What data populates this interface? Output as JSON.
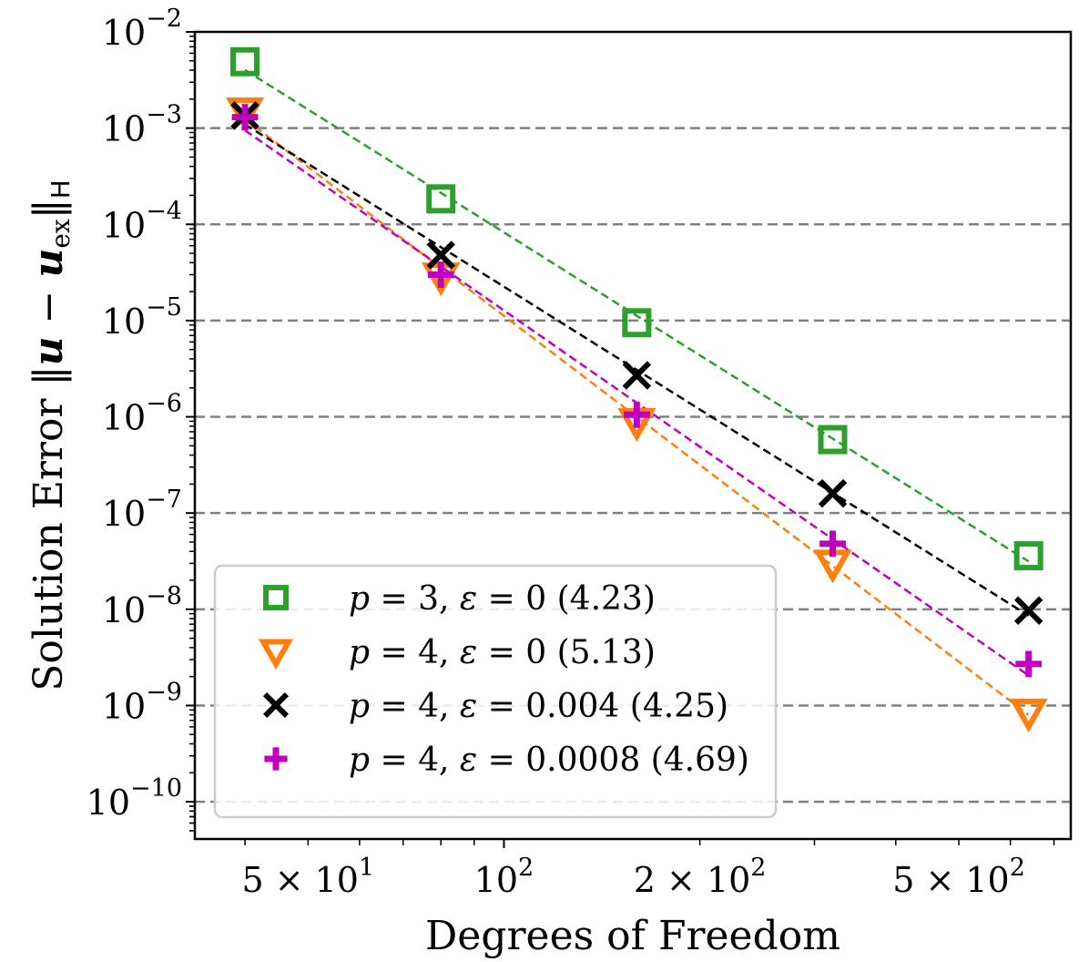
{
  "chart_data": {
    "type": "line",
    "title": "",
    "xlabel": "Degrees of Freedom",
    "ylabel": {
      "prefix": "Solution Error ",
      "norm_open": "‖",
      "u": "u",
      "minus": " − ",
      "u2": "u",
      "sub_ex": "ex",
      "norm_close": "‖",
      "sub_H": "H"
    },
    "xscale": "log",
    "yscale": "log",
    "xlim": [
      33.5,
      743
    ],
    "ylim": [
      4.1e-11,
      0.01
    ],
    "x_ticks_major": [
      {
        "value": 100,
        "base": "10",
        "exp": "2",
        "mult": ""
      }
    ],
    "x_ticks_labeled_minor": [
      {
        "value": 50,
        "base": "10",
        "exp": "1",
        "mult": "5 × "
      },
      {
        "value": 200,
        "base": "10",
        "exp": "2",
        "mult": "2 × "
      },
      {
        "value": 500,
        "base": "10",
        "exp": "2",
        "mult": "5 × "
      }
    ],
    "x_ticks_minor": [
      40,
      60,
      70,
      80,
      90,
      300,
      400,
      600,
      700
    ],
    "y_ticks": [
      {
        "value": 0.01,
        "base": "10",
        "exp": "−2"
      },
      {
        "value": 0.001,
        "base": "10",
        "exp": "−3"
      },
      {
        "value": 0.0001,
        "base": "10",
        "exp": "−4"
      },
      {
        "value": 1e-05,
        "base": "10",
        "exp": "−5"
      },
      {
        "value": 1e-06,
        "base": "10",
        "exp": "−6"
      },
      {
        "value": 1e-07,
        "base": "10",
        "exp": "−7"
      },
      {
        "value": 1e-08,
        "base": "10",
        "exp": "−8"
      },
      {
        "value": 1e-09,
        "base": "10",
        "exp": "−9"
      },
      {
        "value": 1e-10,
        "base": "10",
        "exp": "−10"
      }
    ],
    "grid": {
      "axis": "y",
      "style": "dashed",
      "color": "#808080"
    },
    "x": [
      40,
      80,
      160,
      320,
      640
    ],
    "series": [
      {
        "name": "p = 3, ε = 0 (4.23)",
        "label_parts": {
          "p": "3",
          "eps": "0",
          "rate": "(4.23)"
        },
        "marker": "square",
        "color": "#2ca02c",
        "values": [
          0.0049,
          0.000184,
          9.5e-06,
          5.8e-07,
          3.6e-08
        ],
        "fit_rate": 4.23
      },
      {
        "name": "p = 4, ε = 0 (5.13)",
        "label_parts": {
          "p": "4",
          "eps": "0",
          "rate": "(5.13)"
        },
        "marker": "triangle-down",
        "color": "#ff7f0e",
        "values": [
          0.0015,
          2.9e-05,
          8.9e-07,
          3e-08,
          8.5e-10
        ],
        "fit_rate": 5.13
      },
      {
        "name": "p = 4, ε = 0.004 (4.25)",
        "label_parts": {
          "p": "4",
          "eps": "0.004",
          "rate": "(4.25)"
        },
        "marker": "x",
        "color": "#000000",
        "values": [
          0.00135,
          4.8e-05,
          2.7e-06,
          1.6e-07,
          9.7e-09
        ],
        "fit_rate": 4.25
      },
      {
        "name": "p = 4, ε = 0.0008 (4.69)",
        "label_parts": {
          "p": "4",
          "eps": "0.0008",
          "rate": "(4.69)"
        },
        "marker": "plus",
        "color": "#bf00bf",
        "values": [
          0.0013,
          3e-05,
          1.05e-06,
          4.8e-08,
          2.7e-09
        ],
        "fit_rate": 4.69
      }
    ],
    "legend": {
      "placement": "lower-left",
      "frame": true
    }
  }
}
